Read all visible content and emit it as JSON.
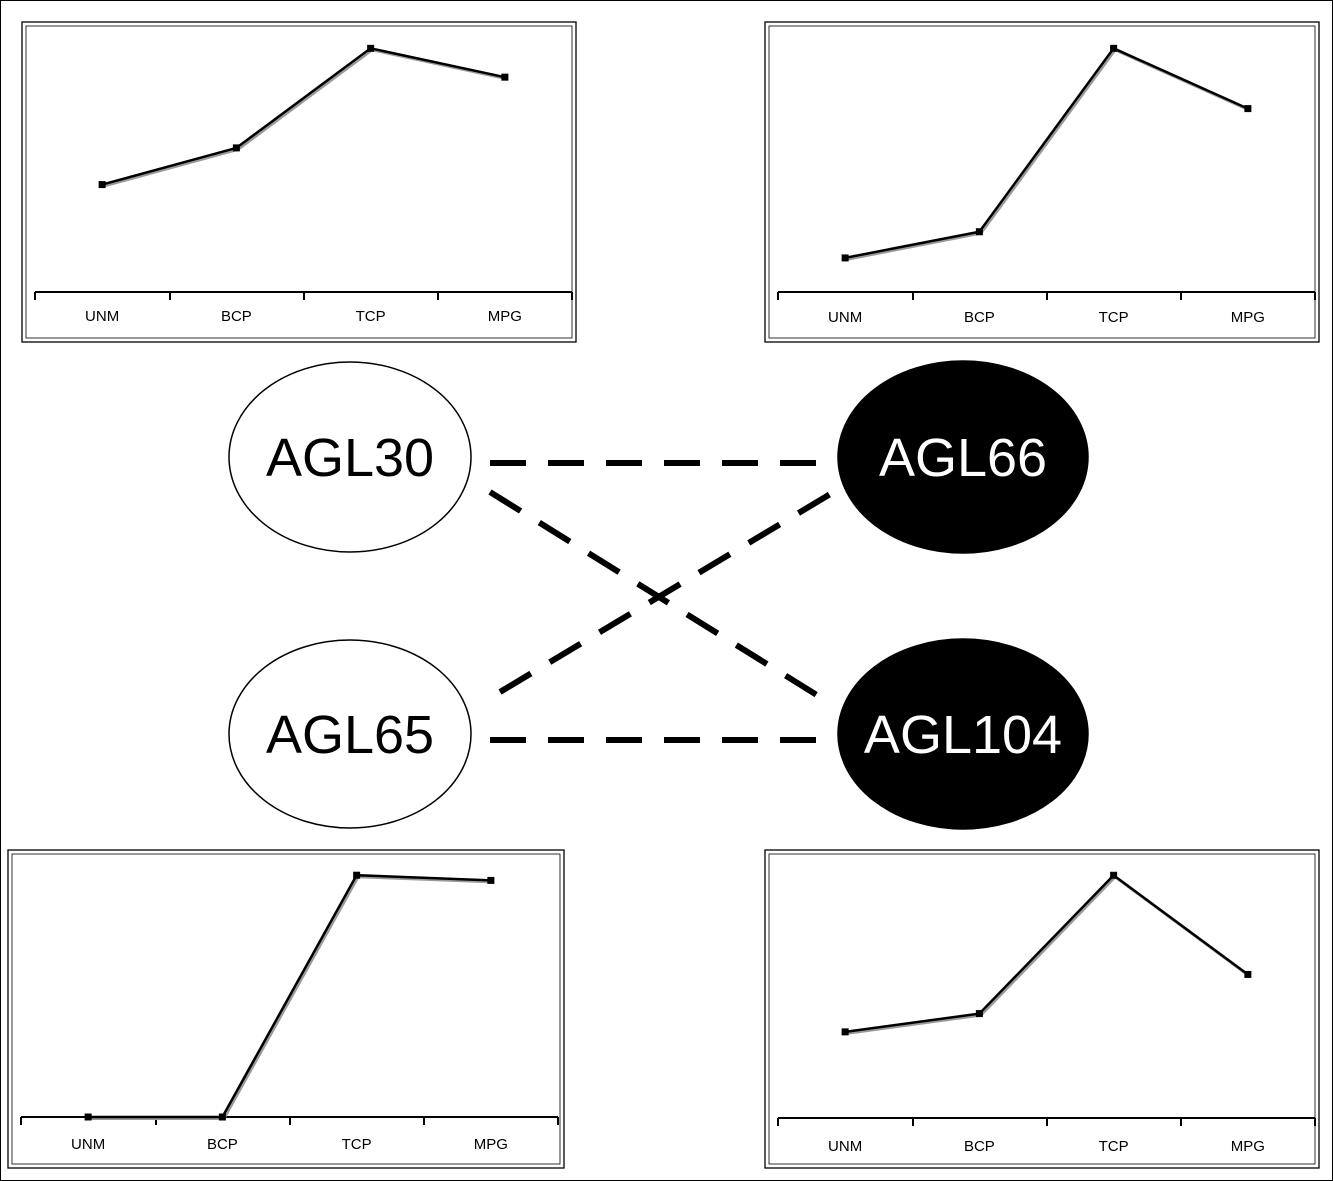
{
  "network": {
    "nodes": [
      {
        "id": "agl30",
        "label": "AGL30",
        "fill": "#ffffff",
        "text_color": "#000000"
      },
      {
        "id": "agl66",
        "label": "AGL66",
        "fill": "#000000",
        "text_color": "#ffffff"
      },
      {
        "id": "agl65",
        "label": "AGL65",
        "fill": "#ffffff",
        "text_color": "#000000"
      },
      {
        "id": "agl104",
        "label": "AGL104",
        "fill": "#000000",
        "text_color": "#ffffff"
      }
    ],
    "edges": [
      {
        "from": "agl30",
        "to": "agl66",
        "style": "dashed"
      },
      {
        "from": "agl30",
        "to": "agl104",
        "style": "dashed"
      },
      {
        "from": "agl65",
        "to": "agl66",
        "style": "dashed"
      },
      {
        "from": "agl65",
        "to": "agl104",
        "style": "dashed"
      }
    ]
  },
  "chart_data": [
    {
      "type": "line",
      "categories": [
        "UNM",
        "BCP",
        "TCP",
        "MPG"
      ],
      "values": [
        0.41,
        0.55,
        0.93,
        0.82
      ],
      "ylim": [
        0,
        1
      ],
      "grid": false,
      "line_color": "#000000"
    },
    {
      "type": "line",
      "categories": [
        "UNM",
        "BCP",
        "TCP",
        "MPG"
      ],
      "values": [
        0.13,
        0.23,
        0.93,
        0.7
      ],
      "ylim": [
        0,
        1
      ],
      "grid": false,
      "line_color": "#000000"
    },
    {
      "type": "line",
      "categories": [
        "UNM",
        "BCP",
        "TCP",
        "MPG"
      ],
      "values": [
        0.0,
        0.0,
        0.93,
        0.91
      ],
      "ylim": [
        0,
        1
      ],
      "grid": false,
      "line_color": "#000000"
    },
    {
      "type": "line",
      "categories": [
        "UNM",
        "BCP",
        "TCP",
        "MPG"
      ],
      "values": [
        0.33,
        0.4,
        0.93,
        0.55
      ],
      "ylim": [
        0,
        1
      ],
      "grid": false,
      "line_color": "#000000"
    }
  ]
}
